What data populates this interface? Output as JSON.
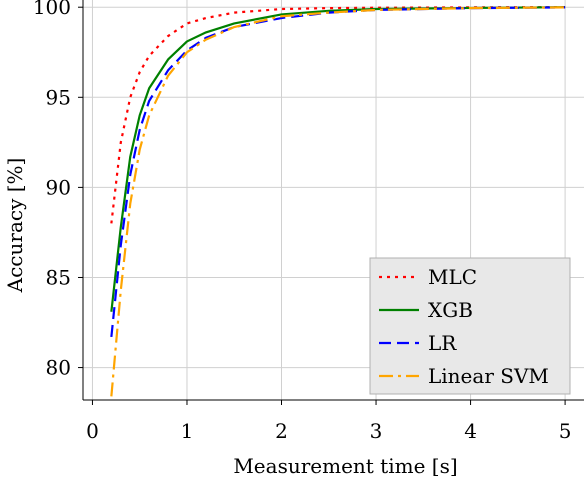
{
  "chart_data": {
    "type": "line",
    "title": "",
    "xlabel": "Measurement time [s]",
    "ylabel": "Accuracy [%]",
    "xlim": [
      -0.1,
      5.2
    ],
    "ylim": [
      78.2,
      100.4
    ],
    "x_ticks": [
      0,
      1,
      2,
      3,
      4,
      5
    ],
    "y_ticks": [
      80,
      85,
      90,
      95,
      100
    ],
    "grid": true,
    "legend_position": "bottom-right",
    "series": [
      {
        "name": "MLC",
        "color": "#ff0000",
        "style": "dotted",
        "x": [
          0.2,
          0.3,
          0.4,
          0.5,
          0.6,
          0.8,
          1.0,
          1.2,
          1.5,
          2.0,
          2.5,
          3.0,
          3.5,
          4.0,
          4.5,
          5.0
        ],
        "y": [
          88.0,
          92.5,
          95.0,
          96.4,
          97.3,
          98.4,
          99.1,
          99.4,
          99.7,
          99.9,
          99.95,
          99.97,
          99.98,
          99.99,
          100.0,
          100.0
        ]
      },
      {
        "name": "XGB",
        "color": "#008000",
        "style": "solid",
        "x": [
          0.2,
          0.3,
          0.4,
          0.5,
          0.6,
          0.8,
          1.0,
          1.2,
          1.5,
          2.0,
          2.5,
          3.0,
          3.5,
          4.0,
          4.5,
          5.0
        ],
        "y": [
          83.1,
          87.8,
          91.7,
          94.0,
          95.5,
          97.1,
          98.1,
          98.6,
          99.1,
          99.6,
          99.8,
          99.9,
          99.93,
          99.96,
          99.98,
          100.0
        ]
      },
      {
        "name": "LR",
        "color": "#0000ff",
        "style": "dashed",
        "x": [
          0.2,
          0.3,
          0.4,
          0.5,
          0.6,
          0.8,
          1.0,
          1.2,
          1.5,
          2.0,
          2.5,
          3.0,
          3.5,
          4.0,
          4.5,
          5.0
        ],
        "y": [
          81.7,
          86.8,
          90.7,
          93.2,
          94.8,
          96.5,
          97.6,
          98.3,
          98.9,
          99.4,
          99.7,
          99.85,
          99.9,
          99.95,
          99.97,
          99.99
        ]
      },
      {
        "name": "Linear SVM",
        "color": "#ffa500",
        "style": "dashdot",
        "x": [
          0.2,
          0.3,
          0.4,
          0.5,
          0.6,
          0.8,
          1.0,
          1.2,
          1.5,
          2.0,
          2.5,
          3.0,
          3.5,
          4.0,
          4.5,
          5.0
        ],
        "y": [
          78.4,
          84.3,
          89.1,
          92.1,
          94.0,
          96.2,
          97.5,
          98.2,
          98.9,
          99.5,
          99.7,
          99.85,
          99.9,
          99.95,
          99.97,
          99.99
        ]
      }
    ]
  }
}
